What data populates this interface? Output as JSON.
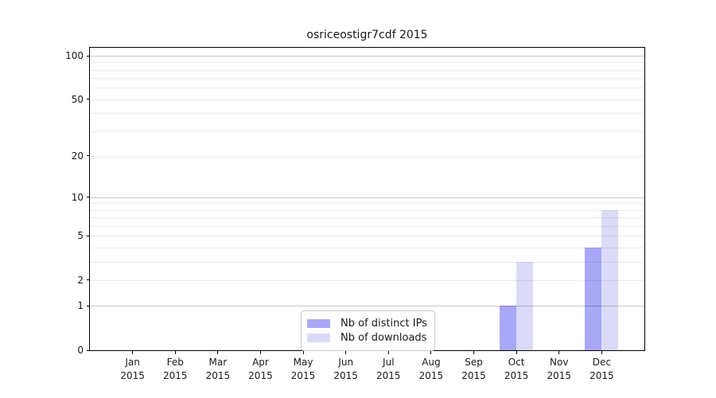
{
  "title": {
    "text": "osriceostigr7cdf 2015"
  },
  "axes": {
    "y_tick_labels": [
      "0",
      "1",
      "2",
      "5",
      "10",
      "20",
      "50",
      "100"
    ],
    "x_months": [
      "Jan",
      "Feb",
      "Mar",
      "Apr",
      "May",
      "Jun",
      "Jul",
      "Aug",
      "Sep",
      "Oct",
      "Nov",
      "Dec"
    ],
    "x_year": "2015"
  },
  "legend": {
    "items": [
      {
        "label": "Nb of distinct IPs",
        "color": "#a8a8f6"
      },
      {
        "label": "Nb of downloads",
        "color": "#dbdbf9"
      }
    ]
  },
  "chart_data": {
    "type": "bar",
    "title": "osriceostigr7cdf 2015",
    "categories": [
      "Jan 2015",
      "Feb 2015",
      "Mar 2015",
      "Apr 2015",
      "May 2015",
      "Jun 2015",
      "Jul 2015",
      "Aug 2015",
      "Sep 2015",
      "Oct 2015",
      "Nov 2015",
      "Dec 2015"
    ],
    "series": [
      {
        "name": "Nb of distinct IPs",
        "color": "#a8a8f6",
        "values": [
          0,
          0,
          0,
          0,
          0,
          0,
          0,
          0,
          0,
          1,
          0,
          4
        ]
      },
      {
        "name": "Nb of downloads",
        "color": "#dbdbf9",
        "values": [
          0,
          0,
          0,
          0,
          0,
          0,
          0,
          0,
          0,
          3,
          0,
          8
        ]
      }
    ],
    "xlabel": "",
    "ylabel": "",
    "yscale": "log1p",
    "ylim": [
      0,
      113
    ],
    "yticks": [
      0,
      1,
      2,
      5,
      10,
      20,
      50,
      100
    ],
    "major_gridlines": [
      1,
      10,
      100
    ],
    "minor_gridlines": [
      2,
      3,
      4,
      5,
      6,
      7,
      8,
      9,
      20,
      30,
      40,
      50,
      60,
      70,
      80,
      90
    ],
    "grid": true,
    "legend_position": "lower center"
  }
}
